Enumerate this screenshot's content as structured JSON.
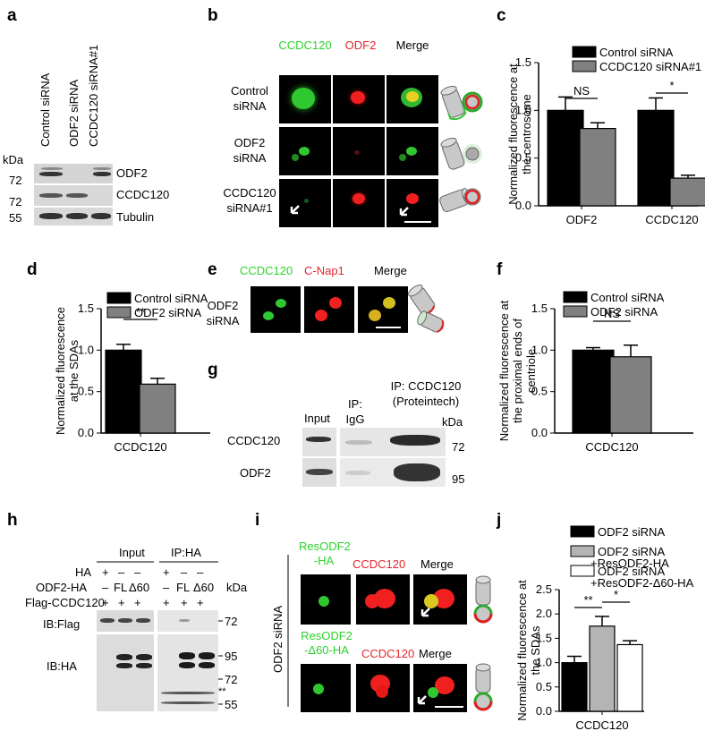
{
  "panels": {
    "a": {
      "label": "a",
      "lanes": [
        "Control siRNA",
        "ODF2 siRNA",
        "CCDC120 siRNA#1"
      ],
      "kda": "kDa",
      "markers": [
        "72",
        "72",
        "55"
      ],
      "bands": [
        "ODF2",
        "CCDC120",
        "Tubulin"
      ]
    },
    "b": {
      "label": "b",
      "channels": [
        "CCDC120",
        "ODF2",
        "Merge"
      ],
      "rows": [
        "Control siRNA",
        "ODF2 siRNA",
        "CCDC120 siRNA#1"
      ]
    },
    "c": {
      "label": "c"
    },
    "d": {
      "label": "d"
    },
    "e": {
      "label": "e",
      "channels": [
        "CCDC120",
        "C-Nap1",
        "Merge"
      ],
      "row": "ODF2 siRNA"
    },
    "f": {
      "label": "f"
    },
    "g": {
      "label": "g",
      "cols": [
        "Input",
        "IP: IgG",
        "IP: CCDC120 (Proteintech)"
      ],
      "rows": [
        "CCDC120",
        "ODF2"
      ],
      "kda": "kDa",
      "markers": [
        "72",
        "95"
      ]
    },
    "h": {
      "label": "h",
      "groups": [
        "Input",
        "IP:HA"
      ],
      "row_labels": [
        "HA",
        "ODF2-HA",
        "Flag-CCDC120"
      ],
      "ha_row": [
        "+",
        "–",
        "–",
        "+",
        "–",
        "–"
      ],
      "odf2_row": [
        "–",
        "FL",
        "Δ60",
        "–",
        "FL",
        "Δ60"
      ],
      "flag_row": [
        "+",
        "+",
        "+",
        "+",
        "+",
        "+"
      ],
      "kda": "kDa",
      "blots": [
        "IB:Flag",
        "IB:HA"
      ],
      "markers": [
        "72",
        "95",
        "72",
        "55"
      ],
      "stars": "**"
    },
    "i": {
      "label": "i",
      "side": "ODF2 siRNA",
      "row1": [
        "ResODF2 -HA",
        "CCDC120",
        "Merge"
      ],
      "row2": [
        "ResODF2 -Δ60-HA",
        "CCDC120",
        "Merge"
      ]
    },
    "j": {
      "label": "j"
    }
  },
  "chart_data": [
    {
      "panel": "c",
      "type": "bar",
      "ylabel": "Normalized fluorescence at the centrosome",
      "categories": [
        "ODF2",
        "CCDC120"
      ],
      "series": [
        {
          "name": "Control siRNA",
          "color": "#000000",
          "values": [
            1.0,
            1.0
          ],
          "errors": [
            0.14,
            0.13
          ]
        },
        {
          "name": "CCDC120 siRNA#1",
          "color": "#808080",
          "values": [
            0.81,
            0.29
          ],
          "errors": [
            0.06,
            0.03
          ]
        }
      ],
      "ylim": [
        0.0,
        1.5
      ],
      "yticks": [
        "0.0",
        "0.5",
        "1.0",
        "1.5"
      ],
      "annotations": [
        "NS",
        "*"
      ]
    },
    {
      "panel": "d",
      "type": "bar",
      "ylabel": "Normalized fluorescence at the SDAs",
      "categories": [
        "CCDC120"
      ],
      "series": [
        {
          "name": "Control siRNA",
          "color": "#000000",
          "values": [
            1.0
          ],
          "errors": [
            0.07
          ]
        },
        {
          "name": "ODF2 siRNA",
          "color": "#808080",
          "values": [
            0.59
          ],
          "errors": [
            0.07
          ]
        }
      ],
      "ylim": [
        0.0,
        1.5
      ],
      "yticks": [
        "0.0",
        "0.5",
        "1.0",
        "1.5"
      ],
      "annotations": [
        "**"
      ]
    },
    {
      "panel": "f",
      "type": "bar",
      "ylabel": "Normalized fluorescence at the proximal ends of centriole",
      "categories": [
        "CCDC120"
      ],
      "series": [
        {
          "name": "Control siRNA",
          "color": "#000000",
          "values": [
            1.0
          ],
          "errors": [
            0.03
          ]
        },
        {
          "name": "ODF2 siRNA",
          "color": "#808080",
          "values": [
            0.92
          ],
          "errors": [
            0.14
          ]
        }
      ],
      "ylim": [
        0.0,
        1.5
      ],
      "yticks": [
        "0.0",
        "0.5",
        "1.0",
        "1.5"
      ],
      "annotations": [
        "NS"
      ]
    },
    {
      "panel": "j",
      "type": "bar",
      "ylabel": "Normalized fluorescence at the SDAs",
      "categories": [
        "CCDC120"
      ],
      "series": [
        {
          "name": "ODF2 siRNA",
          "color": "#000000",
          "values": [
            1.0
          ],
          "errors": [
            0.13
          ]
        },
        {
          "name": "ODF2 siRNA +ResODF2-HA",
          "color": "#b4b4b4",
          "values": [
            1.75
          ],
          "errors": [
            0.2
          ]
        },
        {
          "name": "ODF2 siRNA +ResODF2-Δ60-HA",
          "color": "#ffffff",
          "values": [
            1.37
          ],
          "errors": [
            0.08
          ]
        }
      ],
      "ylim": [
        0.0,
        2.5
      ],
      "yticks": [
        "0.0",
        "0.5",
        "1.0",
        "1.5",
        "2.0",
        "2.5"
      ],
      "annotations": [
        "**",
        "*"
      ]
    }
  ]
}
